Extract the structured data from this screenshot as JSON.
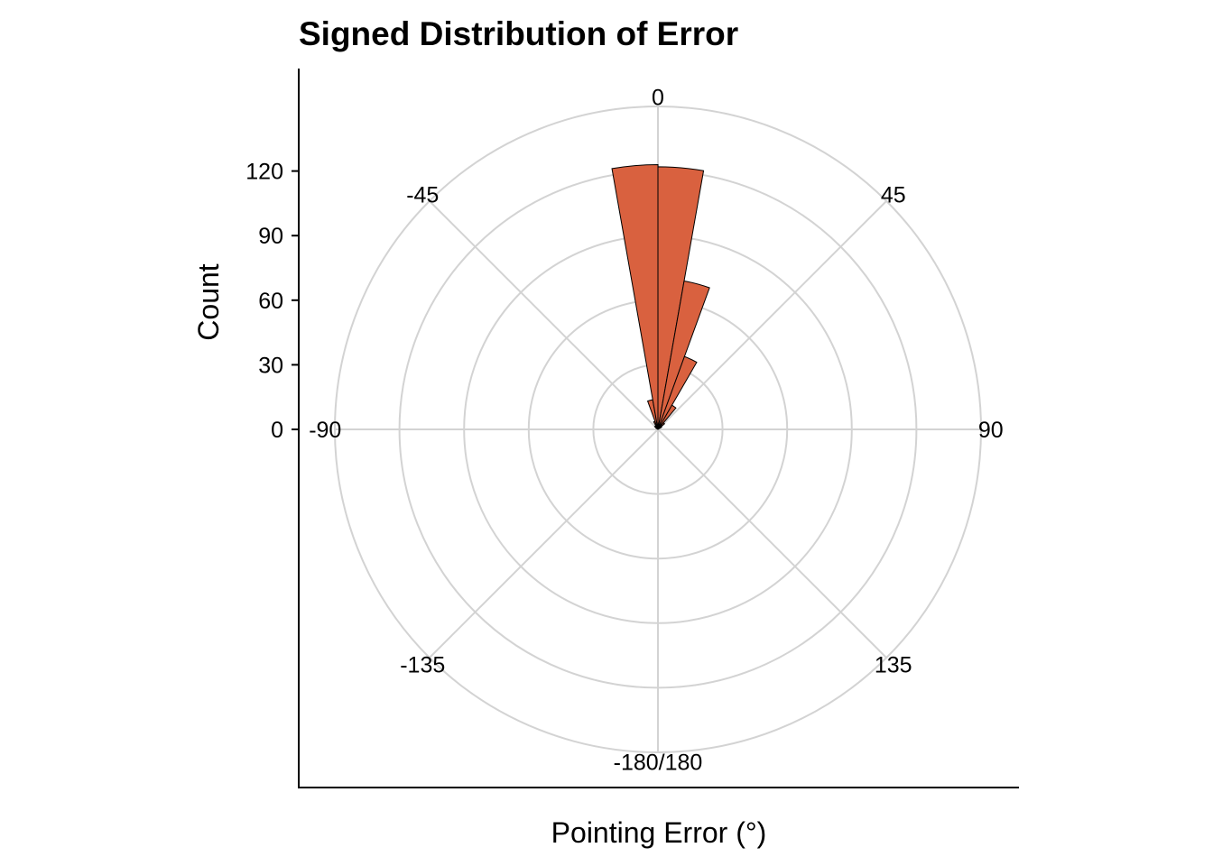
{
  "chart_data": {
    "type": "polar-bar",
    "title": "Signed Distribution of Error",
    "xlabel": "Pointing Error (°)",
    "ylabel": "Count",
    "y_ticks": [
      "0",
      "30",
      "60",
      "90",
      "120"
    ],
    "y_range": [
      0,
      150
    ],
    "angle_range": [
      -180,
      180
    ],
    "angle_ticks": [
      {
        "angle": 0,
        "label": "0"
      },
      {
        "angle": 45,
        "label": "45"
      },
      {
        "angle": 90,
        "label": "90"
      },
      {
        "angle": 135,
        "label": "135"
      },
      {
        "angle": 180,
        "label": "-180/180"
      },
      {
        "angle": -135,
        "label": "-135"
      },
      {
        "angle": -90,
        "label": "-90"
      },
      {
        "angle": -45,
        "label": "-45"
      }
    ],
    "radial_grid": [
      30,
      60,
      90,
      120,
      150
    ],
    "grid": true,
    "bin_width": 10,
    "bins": [
      {
        "start": -40,
        "end": -30,
        "count": 1
      },
      {
        "start": -30,
        "end": -20,
        "count": 4
      },
      {
        "start": -20,
        "end": -10,
        "count": 14
      },
      {
        "start": -10,
        "end": 0,
        "count": 123
      },
      {
        "start": 0,
        "end": 10,
        "count": 122
      },
      {
        "start": 10,
        "end": 20,
        "count": 70
      },
      {
        "start": 20,
        "end": 30,
        "count": 36
      },
      {
        "start": 30,
        "end": 40,
        "count": 13
      },
      {
        "start": 40,
        "end": 50,
        "count": 4
      },
      {
        "start": 50,
        "end": 60,
        "count": 2
      },
      {
        "start": -50,
        "end": -40,
        "count": 2
      },
      {
        "start": -60,
        "end": -50,
        "count": 1
      }
    ],
    "bins_note_order": "unordered",
    "colors": {
      "bar_fill": "#D9613F",
      "bar_stroke": "#000000",
      "grid": "#D3D3D3",
      "axis": "#000000"
    }
  }
}
